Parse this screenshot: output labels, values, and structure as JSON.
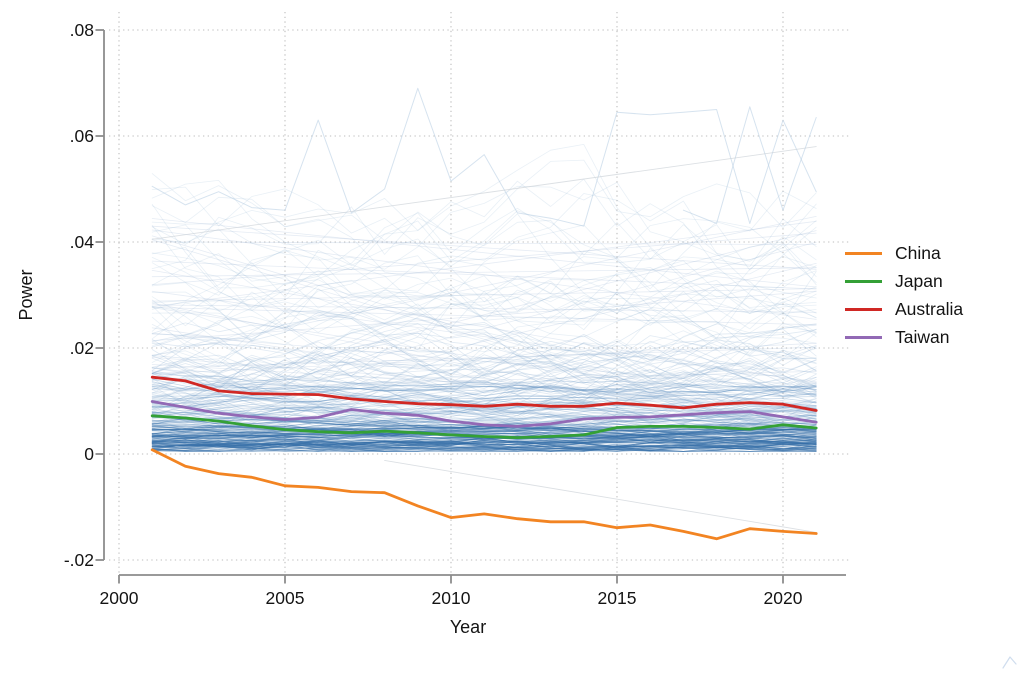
{
  "chart_data": {
    "type": "line",
    "title": "",
    "xlabel": "Year",
    "ylabel": "Power",
    "xlim": [
      1999.8,
      2021.9
    ],
    "ylim": [
      -0.022,
      0.0805
    ],
    "x_ticks": [
      2000,
      2005,
      2010,
      2015,
      2020
    ],
    "x_tick_labels": [
      "2000",
      "2005",
      "2010",
      "2015",
      "2020"
    ],
    "y_ticks": [
      0.08,
      0.06,
      0.04,
      0.02,
      0,
      -0.02
    ],
    "y_tick_labels": [
      ".08",
      ".06",
      ".04",
      ".02",
      "0",
      "-.02"
    ],
    "grid": "dotted",
    "legend_position": "right-outside",
    "x": [
      2001,
      2002,
      2003,
      2004,
      2005,
      2006,
      2007,
      2008,
      2009,
      2010,
      2011,
      2012,
      2013,
      2014,
      2015,
      2016,
      2017,
      2018,
      2019,
      2020,
      2021
    ],
    "series": [
      {
        "name": "China",
        "color": "#F28422",
        "values": [
          0.0008,
          -0.0023,
          -0.0037,
          -0.0044,
          -0.006,
          -0.0063,
          -0.0071,
          -0.0073,
          -0.0098,
          -0.012,
          -0.0113,
          -0.0122,
          -0.0128,
          -0.0128,
          -0.0139,
          -0.0134,
          -0.0146,
          -0.016,
          -0.0141,
          -0.0146,
          -0.015
        ]
      },
      {
        "name": "Japan",
        "color": "#34A036",
        "values": [
          0.0072,
          0.0068,
          0.0062,
          0.0053,
          0.0046,
          0.0042,
          0.004,
          0.0043,
          0.004,
          0.0036,
          0.0033,
          0.0031,
          0.0033,
          0.0036,
          0.005,
          0.0052,
          0.0052,
          0.005,
          0.0047,
          0.0055,
          0.0049
        ]
      },
      {
        "name": "Australia",
        "color": "#D02824",
        "values": [
          0.0145,
          0.0138,
          0.0119,
          0.0114,
          0.0113,
          0.0112,
          0.0104,
          0.0099,
          0.0095,
          0.0093,
          0.009,
          0.0094,
          0.009,
          0.009,
          0.0096,
          0.0092,
          0.0087,
          0.0094,
          0.0097,
          0.0094,
          0.0082
        ]
      },
      {
        "name": "Taiwan",
        "color": "#9269B5",
        "values": [
          0.0099,
          0.0088,
          0.0077,
          0.007,
          0.0065,
          0.0069,
          0.0084,
          0.0077,
          0.0073,
          0.0062,
          0.0055,
          0.0052,
          0.0057,
          0.0066,
          0.0069,
          0.007,
          0.0074,
          0.0078,
          0.008,
          0.007,
          0.006
        ]
      }
    ],
    "background": {
      "style": "spaghetti",
      "approx_line_count": 250,
      "color_hex": "#9EC1DD",
      "dense_band_range": [
        0,
        0.01
      ],
      "value_range": [
        0,
        0.07
      ],
      "note": "many faint unlabeled trajectories, densest just above 0",
      "outlier_paths": [
        [
          [
            2001,
            0.0505
          ],
          [
            2002,
            0.047
          ],
          [
            2003,
            0.0495
          ],
          [
            2004,
            0.0465
          ],
          [
            2005,
            0.046
          ],
          [
            2006,
            0.063
          ],
          [
            2007,
            0.0455
          ],
          [
            2008,
            0.05
          ],
          [
            2009,
            0.069
          ],
          [
            2010,
            0.0515
          ],
          [
            2011,
            0.0565
          ],
          [
            2012,
            0.0455
          ],
          [
            2013,
            0.0445
          ],
          [
            2014,
            0.043
          ],
          [
            2015,
            0.0645
          ],
          [
            2016,
            0.064
          ],
          [
            2017,
            0.0645
          ],
          [
            2018,
            0.065
          ],
          [
            2019,
            0.0435
          ],
          [
            2020,
            0.063
          ],
          [
            2021,
            0.0495
          ]
        ],
        [
          [
            2017,
            0.046
          ],
          [
            2018,
            0.0435
          ],
          [
            2019,
            0.0655
          ],
          [
            2020,
            0.046
          ],
          [
            2021,
            0.0635
          ]
        ]
      ],
      "faint_gray_paths": [
        [
          [
            2001,
            0.0405
          ],
          [
            2021,
            0.058
          ]
        ],
        [
          [
            2008,
            -0.0012
          ],
          [
            2021,
            -0.0148
          ]
        ]
      ]
    },
    "axis_color": "#8C8C8C",
    "grid_color": "#BDBDBD",
    "text_color": "#141414"
  }
}
